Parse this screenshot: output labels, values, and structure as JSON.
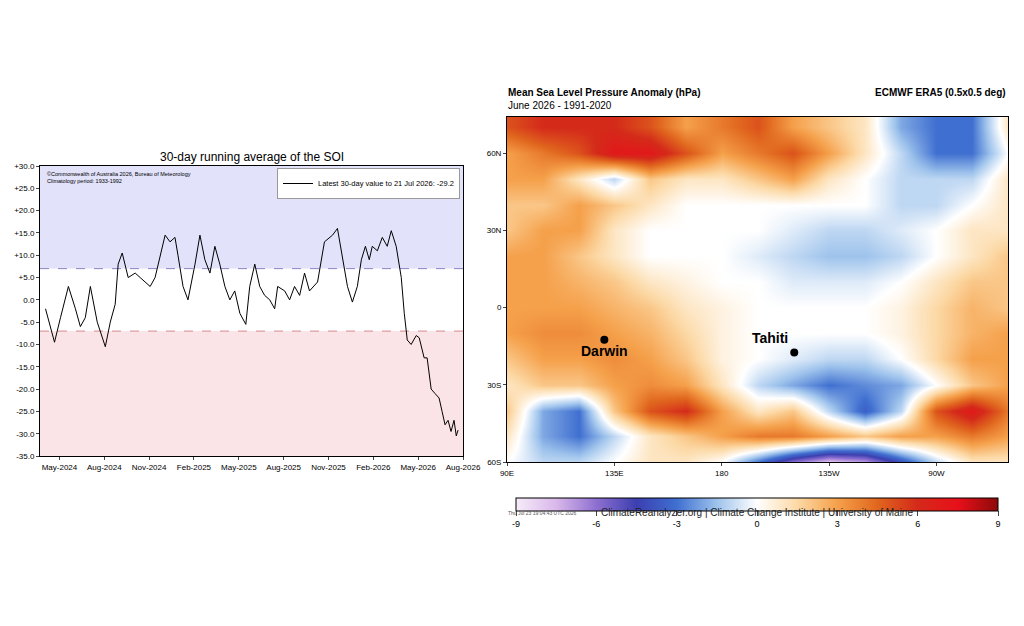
{
  "chart_data": [
    {
      "type": "line",
      "title": "30-day running average of the SOI",
      "annotations": [
        "©Commonwealth of Australia 2026, Bureau of Meteorology",
        "Climatology period: 1933-1992"
      ],
      "x": [
        -0.93,
        -0.33,
        0.07,
        0.6,
        1.07,
        1.4,
        1.73,
        2.07,
        2.53,
        3.07,
        3.4,
        3.73,
        3.93,
        4.2,
        4.6,
        5.07,
        5.4,
        5.73,
        6.07,
        6.4,
        6.73,
        7.07,
        7.4,
        7.73,
        7.93,
        8.27,
        8.6,
        9.07,
        9.4,
        9.73,
        10.07,
        10.4,
        10.73,
        11.07,
        11.4,
        11.73,
        12.07,
        12.47,
        12.73,
        13.07,
        13.4,
        13.73,
        14.07,
        14.4,
        14.6,
        15.07,
        15.4,
        15.73,
        16.07,
        16.4,
        16.73,
        17.27,
        17.73,
        18.27,
        18.6,
        18.93,
        19.27,
        19.6,
        19.93,
        20.2,
        20.47,
        20.73,
        20.93,
        21.27,
        21.6,
        21.93,
        22.2,
        22.53,
        22.87,
        23.07,
        23.27,
        23.53,
        23.87,
        24.07,
        24.4,
        24.6,
        24.87,
        25.13,
        25.4,
        25.6,
        25.8,
        26.0,
        26.2,
        26.4,
        26.55,
        26.67
      ],
      "series": [
        {
          "name": "Latest 30-day value to 21 Jul 2026: -29.2",
          "color": "#000000",
          "values": [
            -2,
            -9.5,
            -4,
            3,
            -2,
            -6,
            -4,
            3,
            -5,
            -10.5,
            -5,
            -1,
            8,
            10.5,
            5,
            6,
            5,
            4,
            3,
            5,
            10,
            14.5,
            13,
            14,
            10,
            3,
            0,
            8,
            14.5,
            9,
            6,
            12,
            8,
            3,
            0,
            2,
            -3,
            -5.5,
            3,
            8,
            3,
            1,
            0,
            -2,
            3,
            2,
            0,
            3,
            1,
            6,
            2,
            4,
            13,
            14.5,
            16,
            10,
            3,
            -0.5,
            3,
            9,
            12,
            9,
            12,
            11,
            14,
            12,
            15.5,
            12,
            5,
            -3,
            -9,
            -10,
            -8,
            -8.5,
            -13,
            -13,
            -20,
            -21,
            -22,
            -25,
            -28,
            -27,
            -29.5,
            -27,
            -30.5,
            -29.2
          ]
        }
      ],
      "xlim": [
        -1.3,
        27
      ],
      "xticks": [
        {
          "value": 0,
          "label": "May-2024"
        },
        {
          "value": 3,
          "label": "Aug-2024"
        },
        {
          "value": 6,
          "label": "Nov-2024"
        },
        {
          "value": 9,
          "label": "Feb-2025"
        },
        {
          "value": 12,
          "label": "May-2025"
        },
        {
          "value": 15,
          "label": "Aug-2025"
        },
        {
          "value": 18,
          "label": "Nov-2025"
        },
        {
          "value": 21,
          "label": "Feb-2026"
        },
        {
          "value": 24,
          "label": "May-2026"
        },
        {
          "value": 27,
          "label": "Aug-2026"
        }
      ],
      "ylim": [
        -35,
        30
      ],
      "yticks": [
        {
          "value": 30,
          "label": "+30.0"
        },
        {
          "value": 25,
          "label": "+25.0"
        },
        {
          "value": 20,
          "label": "+20.0"
        },
        {
          "value": 15,
          "label": "+15.0"
        },
        {
          "value": 10,
          "label": "+10.0"
        },
        {
          "value": 5,
          "label": "+5.0"
        },
        {
          "value": 0,
          "label": "0.0"
        },
        {
          "value": -5,
          "label": "-5.0"
        },
        {
          "value": -10,
          "label": "-10.0"
        },
        {
          "value": -15,
          "label": "-15.0"
        },
        {
          "value": -20,
          "label": "-20.0"
        },
        {
          "value": -25,
          "label": "-25.0"
        },
        {
          "value": -30,
          "label": "-30.0"
        },
        {
          "value": -35,
          "label": "-35.0"
        }
      ],
      "thresholds": [
        -7,
        7
      ],
      "legend": "upper right"
    },
    {
      "type": "heatmap",
      "title": "Mean Sea Level Pressure Anomaly (hPa)",
      "subtitle": "June 2026 - 1991-2020",
      "annotations": [
        "ECMWF ERA5 (0.5x0.5 deg)",
        "ClimateReanalyzer.org | Climate Change Institute | University of Maine",
        "Thu Jul 23 19:04:43 UTC 2026"
      ],
      "x": [
        90,
        105,
        120,
        135,
        150,
        165,
        180,
        195,
        210,
        225,
        240,
        255,
        270,
        285,
        300
      ],
      "y": [
        -60,
        -50,
        -40,
        -30,
        -20,
        -10,
        0,
        10,
        20,
        30,
        40,
        50,
        60,
        70
      ],
      "cells": [
        [
          0,
          -1,
          -1,
          0,
          1,
          1,
          0,
          -3,
          -6,
          -8,
          -7,
          -4,
          -1,
          1,
          1
        ],
        [
          1,
          -2,
          -3,
          -1,
          1,
          2,
          3,
          4,
          4,
          3,
          2,
          3,
          3,
          4,
          3
        ],
        [
          2,
          -2,
          -3,
          2,
          5,
          6,
          3,
          1,
          2,
          -1,
          -3.5,
          -1,
          5,
          7,
          4
        ],
        [
          1,
          2,
          2,
          3,
          3.5,
          3,
          1,
          -1,
          -2,
          -3,
          -2.5,
          -2,
          0,
          2,
          3
        ],
        [
          2,
          3,
          3,
          3.5,
          3,
          2,
          0.5,
          0,
          -0.5,
          -1,
          -1,
          0,
          1.5,
          3,
          3
        ],
        [
          3,
          3.5,
          3.5,
          3,
          2.5,
          1.5,
          0.5,
          0,
          0,
          0,
          0,
          0.5,
          1.5,
          2.5,
          3
        ],
        [
          3,
          3,
          3,
          2.5,
          2,
          1,
          0.5,
          0,
          0,
          0,
          0,
          0.5,
          1.5,
          2.5,
          2
        ],
        [
          3,
          3,
          2.5,
          2,
          1,
          0.5,
          0,
          0,
          -0.5,
          -0.5,
          -0.5,
          0,
          1,
          2,
          2
        ],
        [
          3,
          3,
          2,
          1,
          0,
          0,
          0,
          -0.5,
          -1,
          -1.5,
          -1.5,
          -1,
          0,
          1,
          2
        ],
        [
          2,
          3,
          3,
          1,
          0,
          0,
          0,
          0,
          -0.5,
          -1,
          -1,
          -0.5,
          0,
          1,
          1
        ],
        [
          2,
          2,
          3,
          2,
          1,
          0,
          0,
          0,
          0,
          0,
          0,
          -1,
          -1,
          0,
          1
        ],
        [
          3,
          3,
          1,
          -1,
          2,
          1,
          1,
          2,
          3,
          1,
          0,
          -1,
          -1,
          -1,
          1
        ],
        [
          3,
          4,
          5,
          7,
          7,
          5,
          3,
          4,
          5,
          3,
          1,
          -1,
          -3,
          -3,
          0
        ],
        [
          5,
          6,
          6,
          6,
          5,
          3,
          4,
          5,
          3,
          2,
          1,
          -2,
          -3,
          -3,
          1
        ]
      ],
      "xlim": [
        90,
        300
      ],
      "xticks": [
        {
          "value": 90,
          "label": "90E"
        },
        {
          "value": 135,
          "label": "135E"
        },
        180,
        {
          "value": 225,
          "label": "135W"
        },
        {
          "value": 270,
          "label": "90W"
        }
      ],
      "ylim": [
        -60,
        74
      ],
      "yticks": [
        {
          "value": -60,
          "label": "60S"
        },
        {
          "value": -30,
          "label": "30S"
        },
        0,
        {
          "value": 30,
          "label": "30N"
        },
        {
          "value": 60,
          "label": "60N"
        }
      ],
      "colorbar_range": [
        -9,
        9
      ],
      "colorbar_ticks": [
        -9,
        -6,
        -3,
        0,
        3,
        6,
        9
      ],
      "points": [
        {
          "name": "Darwin",
          "lon": 130.8,
          "lat": -12.5
        },
        {
          "name": "Tahiti",
          "lon": 210.4,
          "lat": -17.5
        }
      ]
    }
  ]
}
